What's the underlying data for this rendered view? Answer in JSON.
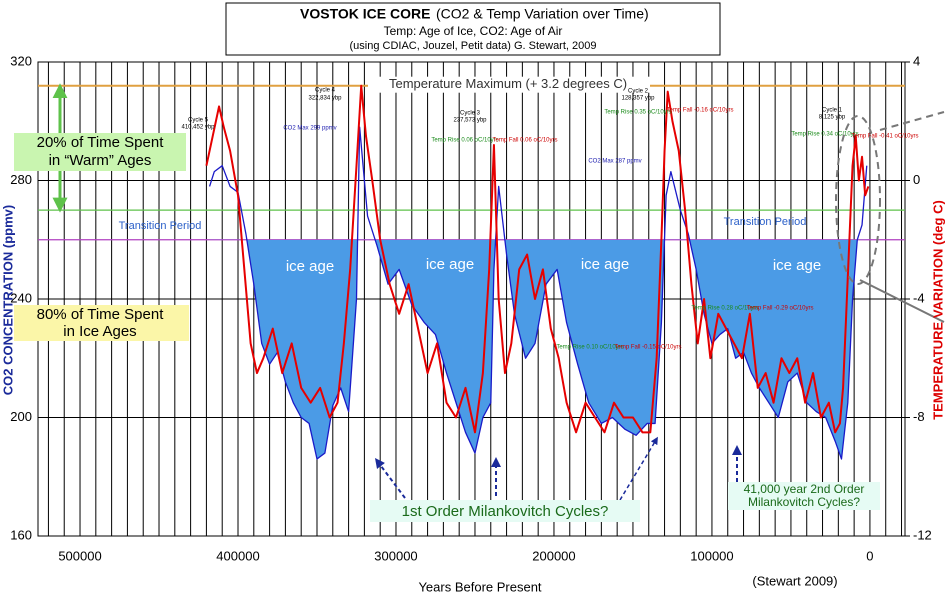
{
  "chart_data": {
    "type": "line",
    "title": "VOSTOK ICE CORE",
    "title_suffix": "(CO2 & Temp Variation over Time)",
    "subtitle": "Temp: Age of Ice, CO2: Age of Air",
    "source": "(using CDIAC, Jouzel, Petit data) G. Stewart, 2009",
    "x_label": "Years Before Present",
    "y_label": "CO2 CONCENTRATION (ppmv)",
    "y2_label": "TEMPERATURE VARIATION (deg C)",
    "credit": "(Stewart 2009)",
    "xlim": [
      526600,
      -22200
    ],
    "xticks": [
      500000,
      400000,
      300000,
      200000,
      100000,
      0
    ],
    "xminor_ticks": [
      520000,
      510000,
      490000,
      480000,
      470000,
      460000,
      450000,
      440000,
      430000,
      420000,
      410000,
      390000,
      380000,
      370000,
      360000,
      350000,
      340000,
      330000,
      320000,
      310000,
      290000,
      280000,
      270000,
      260000,
      250000,
      240000,
      230000,
      220000,
      210000,
      190000,
      180000,
      170000,
      160000,
      150000,
      140000,
      130000,
      120000,
      110000,
      90000,
      80000,
      70000,
      60000,
      50000,
      40000,
      30000,
      20000,
      10000,
      -10000,
      -20000
    ],
    "ylim": [
      160,
      320
    ],
    "yticks": [
      160,
      200,
      240,
      280,
      320
    ],
    "y2lim": [
      -12,
      4
    ],
    "y2ticks": [
      -12,
      -8,
      -4,
      0,
      4
    ],
    "grid": true,
    "series": [
      {
        "name": "CO2",
        "color": "#1a1ac8",
        "x": [
          418000,
          415000,
          410000,
          405000,
          400000,
          395000,
          390000,
          385000,
          380000,
          375000,
          370000,
          365000,
          360000,
          355000,
          350000,
          345000,
          340000,
          335000,
          330000,
          325000,
          323000,
          318000,
          312000,
          305000,
          298000,
          290000,
          282000,
          275000,
          268000,
          262000,
          256000,
          250000,
          245000,
          240000,
          238000,
          235000,
          230000,
          225000,
          218000,
          212000,
          205000,
          198000,
          192000,
          185000,
          178000,
          170000,
          163000,
          155000,
          148000,
          141000,
          136000,
          132000,
          129000,
          126000,
          120000,
          115000,
          110000,
          105000,
          100000,
          95000,
          90000,
          85000,
          80000,
          75000,
          70000,
          64000,
          58000,
          52000,
          46000,
          40000,
          34000,
          28000,
          22000,
          18000,
          14000,
          11000,
          8000,
          5000,
          2000
        ],
        "values": [
          278,
          283,
          285,
          278,
          276,
          262,
          245,
          225,
          218,
          222,
          212,
          205,
          200,
          198,
          186,
          188,
          204,
          210,
          202,
          240,
          298,
          268,
          258,
          245,
          250,
          238,
          232,
          228,
          215,
          205,
          195,
          188,
          200,
          205,
          250,
          278,
          255,
          235,
          220,
          225,
          245,
          250,
          232,
          218,
          205,
          198,
          200,
          196,
          194,
          198,
          198,
          232,
          275,
          283,
          270,
          262,
          250,
          235,
          225,
          228,
          230,
          220,
          222,
          215,
          210,
          205,
          200,
          212,
          215,
          205,
          202,
          200,
          192,
          186,
          205,
          240,
          260,
          265,
          285
        ]
      },
      {
        "name": "Temperature",
        "color": "#e60000",
        "axis": "y2",
        "x": [
          420000,
          416000,
          412000,
          409000,
          405000,
          400000,
          396000,
          392000,
          388000,
          384000,
          378000,
          372000,
          366000,
          360000,
          354000,
          348000,
          342000,
          337000,
          333000,
          329000,
          325000,
          322000,
          319000,
          315000,
          310000,
          304000,
          298000,
          292000,
          286000,
          280000,
          274000,
          268000,
          262000,
          256000,
          250000,
          245000,
          241000,
          238000,
          235000,
          231000,
          227000,
          222000,
          217000,
          212000,
          207000,
          202000,
          197000,
          192000,
          186000,
          180000,
          174000,
          168000,
          162000,
          156000,
          150000,
          144000,
          139000,
          135000,
          132000,
          130000,
          128000,
          125000,
          121000,
          117000,
          113000,
          109000,
          105000,
          101000,
          96000,
          91000,
          86000,
          81000,
          76000,
          71000,
          66000,
          61000,
          56000,
          51000,
          46000,
          41000,
          36000,
          31000,
          26000,
          22000,
          19000,
          17000,
          15000,
          13000,
          11000,
          9000,
          7000,
          5000,
          3000,
          1000
        ],
        "values": [
          0.5,
          1.5,
          2.5,
          1.8,
          1.0,
          -0.5,
          -3.0,
          -5.5,
          -6.5,
          -6.0,
          -5.0,
          -6.5,
          -5.5,
          -7.0,
          -7.5,
          -7.0,
          -8.0,
          -7.5,
          -5.5,
          -3.0,
          0.5,
          3.2,
          1.5,
          0.0,
          -2.0,
          -3.5,
          -4.5,
          -3.5,
          -5.0,
          -6.5,
          -5.5,
          -7.5,
          -8.0,
          -7.0,
          -8.5,
          -6.5,
          -3.0,
          1.2,
          -4.0,
          -6.5,
          -5.5,
          -3.0,
          -2.5,
          -4.0,
          -3.0,
          -5.0,
          -6.0,
          -7.5,
          -8.5,
          -7.5,
          -8.0,
          -8.5,
          -7.5,
          -8.0,
          -8.0,
          -8.5,
          -8.5,
          -6.0,
          -2.0,
          1.0,
          3.0,
          2.0,
          1.0,
          -1.0,
          -3.5,
          -5.5,
          -4.0,
          -6.0,
          -4.5,
          -5.0,
          -5.5,
          -6.0,
          -4.5,
          -7.0,
          -6.5,
          -7.5,
          -6.0,
          -6.5,
          -6.0,
          -7.5,
          -6.5,
          -8.0,
          -7.5,
          -8.5,
          -8.2,
          -7.0,
          -4.5,
          -2.0,
          0.5,
          1.5,
          0.0,
          0.8,
          -0.5,
          -0.2
        ]
      }
    ],
    "temperature_maximum": 3.2,
    "temperature_maximum_label": "Temperature Maximum (+ 3.2 degrees C)",
    "transition_level": 260,
    "warm_level": 270,
    "transition_label": "Transition Period",
    "ice_age_label": "ice age",
    "warm_note": [
      "20% of Time Spent",
      "in “Warm” Ages"
    ],
    "ice_note": [
      "80% of Time Spent",
      "in Ice Ages"
    ],
    "milankovitch_1": "1st Order Milankovitch Cycles?",
    "milankovitch_2": [
      "41,000 year 2nd Order",
      "Milankovitch Cycles?"
    ],
    "cycles": [
      [
        "Cycle 5",
        "410,452 ybp"
      ],
      [
        "Cycle 4",
        "322,834 ybp"
      ],
      [
        "Cycle 3",
        "237,573 ybp"
      ],
      [
        "Cycle 2",
        "128,357 ybp"
      ],
      [
        "Cycle 1",
        "8,125 ybp"
      ]
    ],
    "co2_notes": [
      "CO2 Max 299 ppmv",
      "CO2 Max 287 ppmv"
    ],
    "rate_notes": [
      "Temp Rise 0.06 oC/10yrs",
      "Temp Fall 0.06 oC/10yrs",
      "Temp Rise 0.35 oC/10yrs",
      "Temp Fall -0.16 oC/10yrs",
      "Temp Rise 0.34 oC/10yrs",
      "Temp Fall -0.41 oC/10yrs",
      "Temp Rise 0.10 oC/10yrs",
      "Temp Fall -0.15 oC/10yrs",
      "Temp Rise 0.28 oC/10yrs",
      "Temp Fall -0.29 oC/10yrs"
    ]
  }
}
